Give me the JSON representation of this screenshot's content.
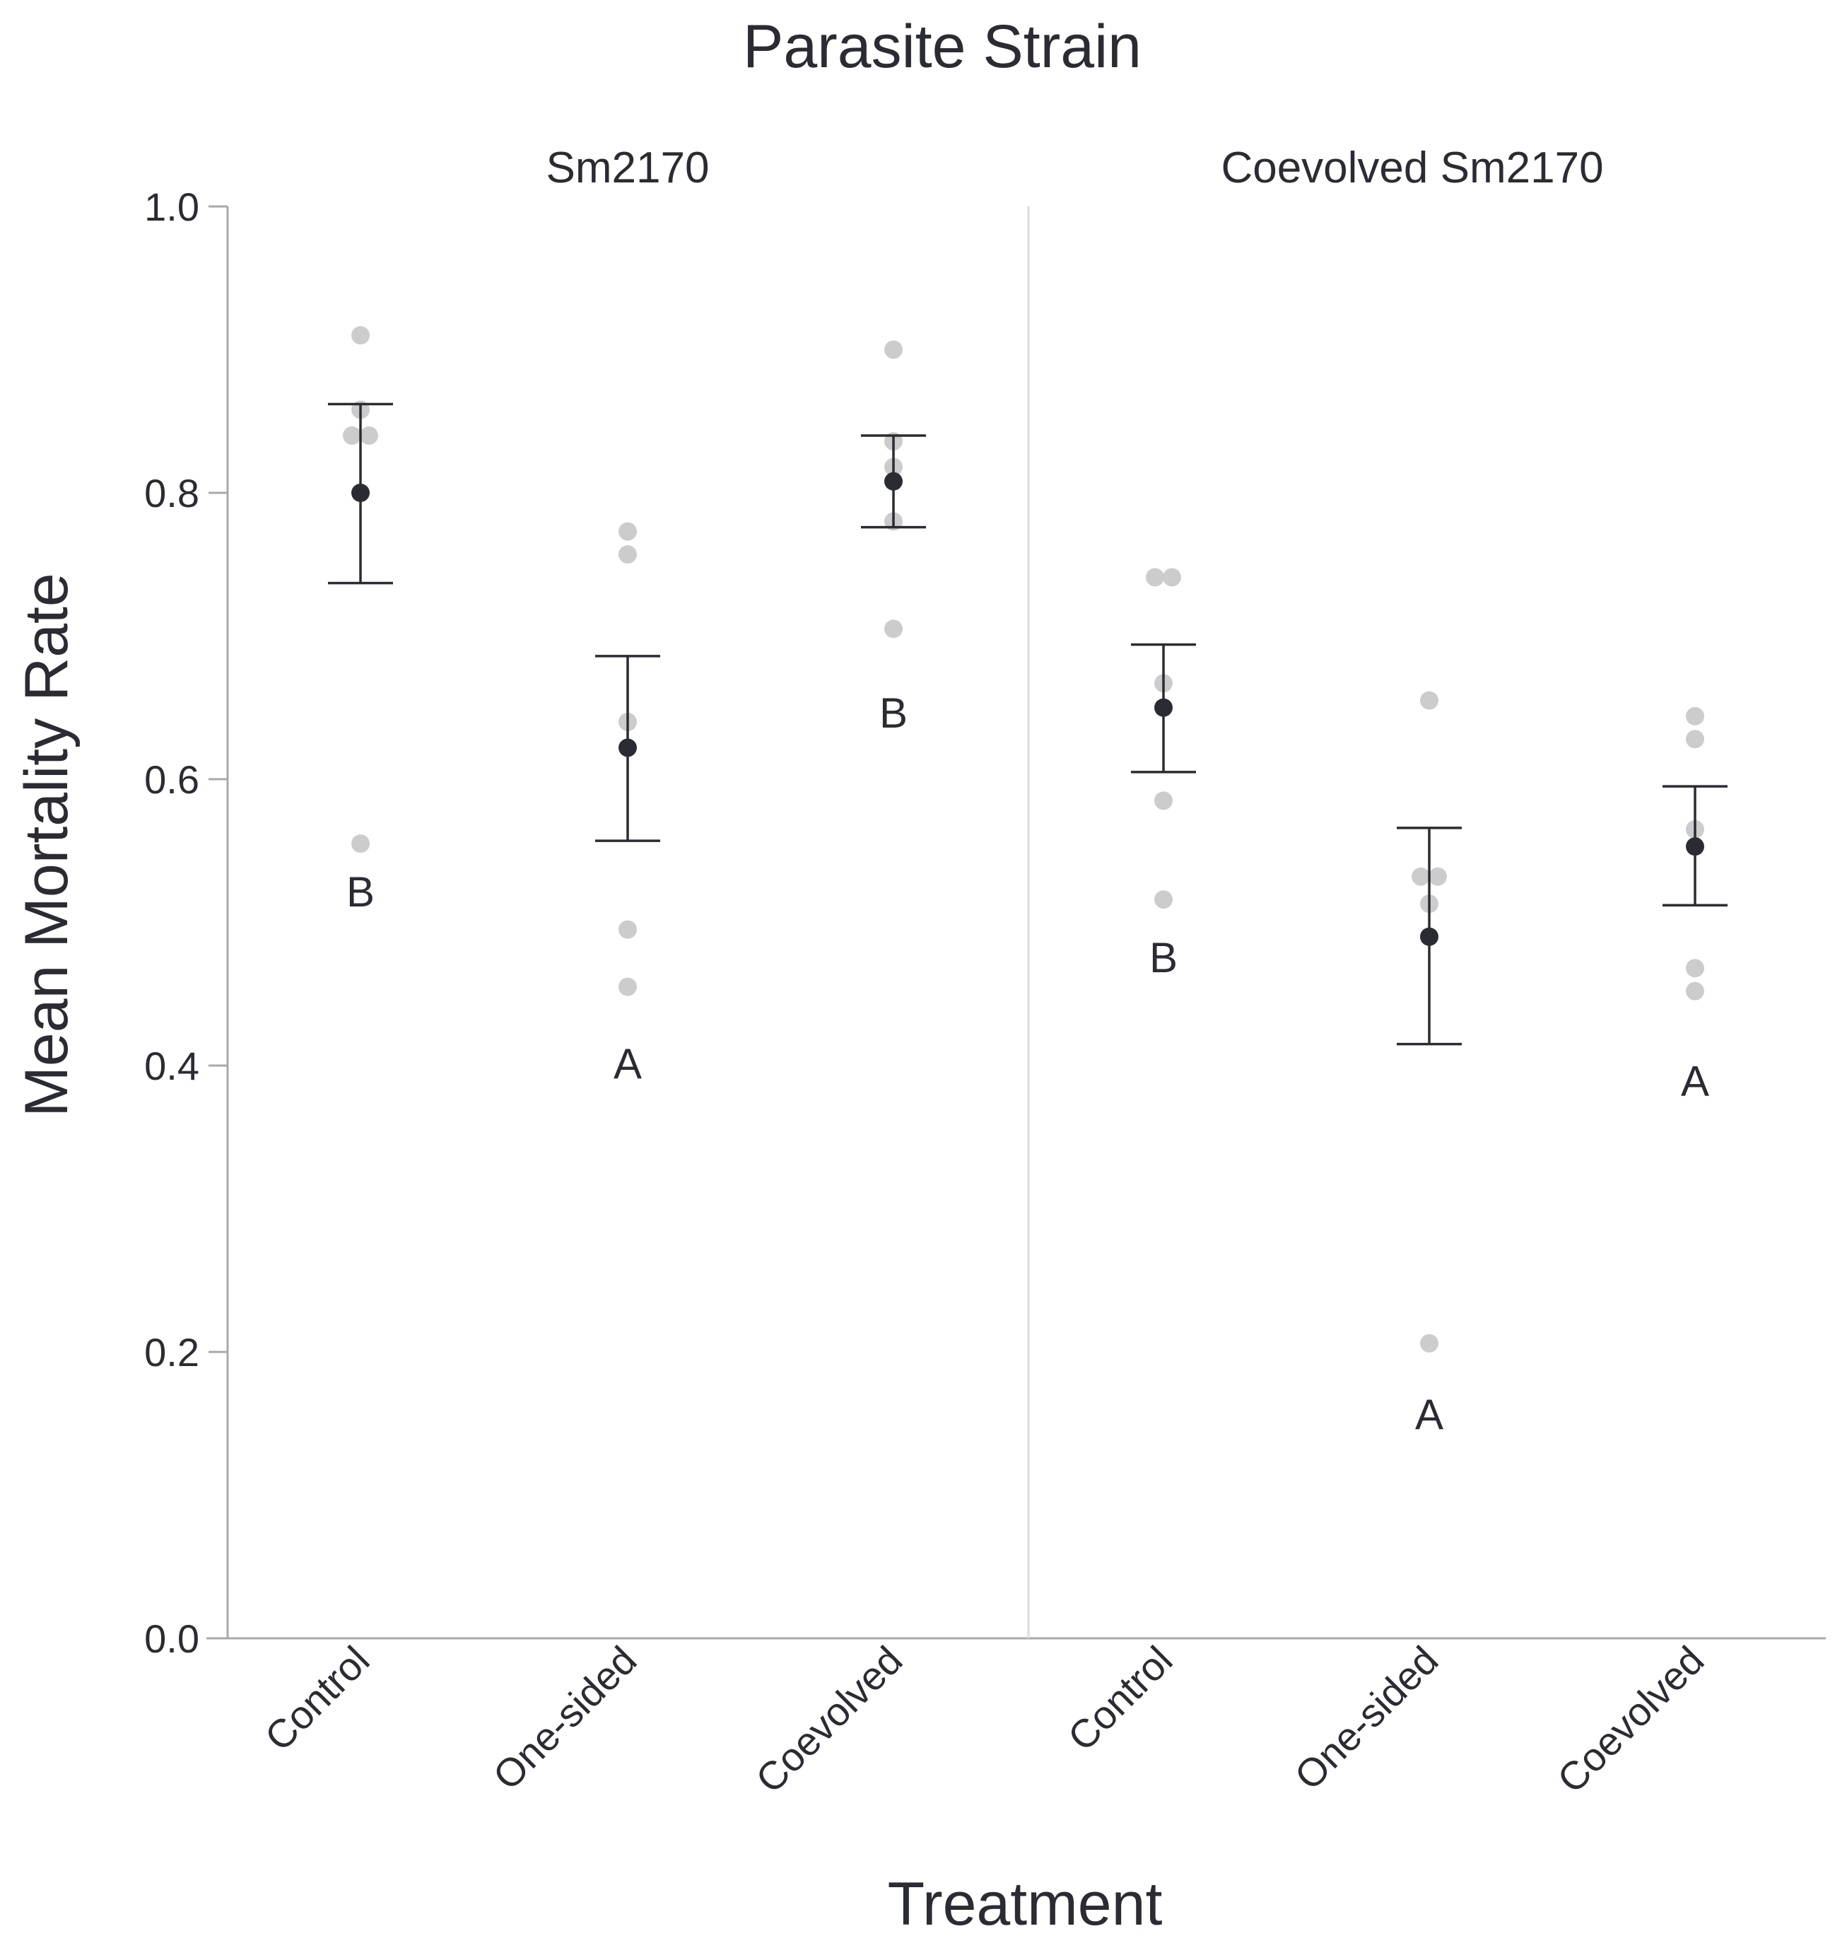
{
  "chart_data": {
    "type": "scatter",
    "title": "Parasite Strain",
    "xlabel": "Treatment",
    "ylabel": "Mean Mortality Rate",
    "ylim": [
      0,
      1
    ],
    "yticks": [
      "0.0",
      "0.2",
      "0.4",
      "0.6",
      "0.8",
      "1.0"
    ],
    "categories": [
      "Control",
      "One-sided",
      "Coevolved"
    ],
    "colors": {
      "raw_point": "#cccccc",
      "mean_point": "#2b2b33",
      "error_bar": "#2b2b33",
      "axis": "#a9a9a9",
      "divider": "#dcdcdc"
    },
    "panels": [
      {
        "name": "Sm2170",
        "groups": [
          {
            "category": "Control",
            "mean": 0.8,
            "err_low": 0.737,
            "err_high": 0.862,
            "letter": "B",
            "letter_y": 0.522,
            "points": [
              {
                "y": 0.91,
                "jitter": 0
              },
              {
                "y": 0.858,
                "jitter": 0
              },
              {
                "y": 0.84,
                "jitter": -1
              },
              {
                "y": 0.84,
                "jitter": 1
              },
              {
                "y": 0.555,
                "jitter": 0
              }
            ]
          },
          {
            "category": "One-sided",
            "mean": 0.622,
            "err_low": 0.557,
            "err_high": 0.686,
            "letter": "A",
            "letter_y": 0.402,
            "points": [
              {
                "y": 0.773,
                "jitter": 0
              },
              {
                "y": 0.757,
                "jitter": 0
              },
              {
                "y": 0.64,
                "jitter": 0
              },
              {
                "y": 0.495,
                "jitter": 0
              },
              {
                "y": 0.455,
                "jitter": 0
              }
            ]
          },
          {
            "category": "Coevolved",
            "mean": 0.808,
            "err_low": 0.776,
            "err_high": 0.84,
            "letter": "B",
            "letter_y": 0.647,
            "points": [
              {
                "y": 0.9,
                "jitter": 0
              },
              {
                "y": 0.836,
                "jitter": 0
              },
              {
                "y": 0.818,
                "jitter": 0
              },
              {
                "y": 0.78,
                "jitter": 0
              },
              {
                "y": 0.705,
                "jitter": 0
              }
            ]
          }
        ]
      },
      {
        "name": "Coevolved Sm2170",
        "groups": [
          {
            "category": "Control",
            "mean": 0.65,
            "err_low": 0.605,
            "err_high": 0.694,
            "letter": "B",
            "letter_y": 0.476,
            "points": [
              {
                "y": 0.741,
                "jitter": -1
              },
              {
                "y": 0.741,
                "jitter": 1
              },
              {
                "y": 0.667,
                "jitter": 0
              },
              {
                "y": 0.585,
                "jitter": 0
              },
              {
                "y": 0.516,
                "jitter": 0
              }
            ]
          },
          {
            "category": "One-sided",
            "mean": 0.49,
            "err_low": 0.415,
            "err_high": 0.566,
            "letter": "A",
            "letter_y": 0.157,
            "points": [
              {
                "y": 0.655,
                "jitter": 0
              },
              {
                "y": 0.532,
                "jitter": -1
              },
              {
                "y": 0.532,
                "jitter": 1
              },
              {
                "y": 0.513,
                "jitter": 0
              },
              {
                "y": 0.206,
                "jitter": 0
              }
            ]
          },
          {
            "category": "Coevolved",
            "mean": 0.553,
            "err_low": 0.512,
            "err_high": 0.595,
            "letter": "A",
            "letter_y": 0.39,
            "points": [
              {
                "y": 0.644,
                "jitter": 0
              },
              {
                "y": 0.628,
                "jitter": 0
              },
              {
                "y": 0.565,
                "jitter": 0
              },
              {
                "y": 0.468,
                "jitter": 0
              },
              {
                "y": 0.452,
                "jitter": 0
              }
            ]
          }
        ]
      }
    ]
  }
}
